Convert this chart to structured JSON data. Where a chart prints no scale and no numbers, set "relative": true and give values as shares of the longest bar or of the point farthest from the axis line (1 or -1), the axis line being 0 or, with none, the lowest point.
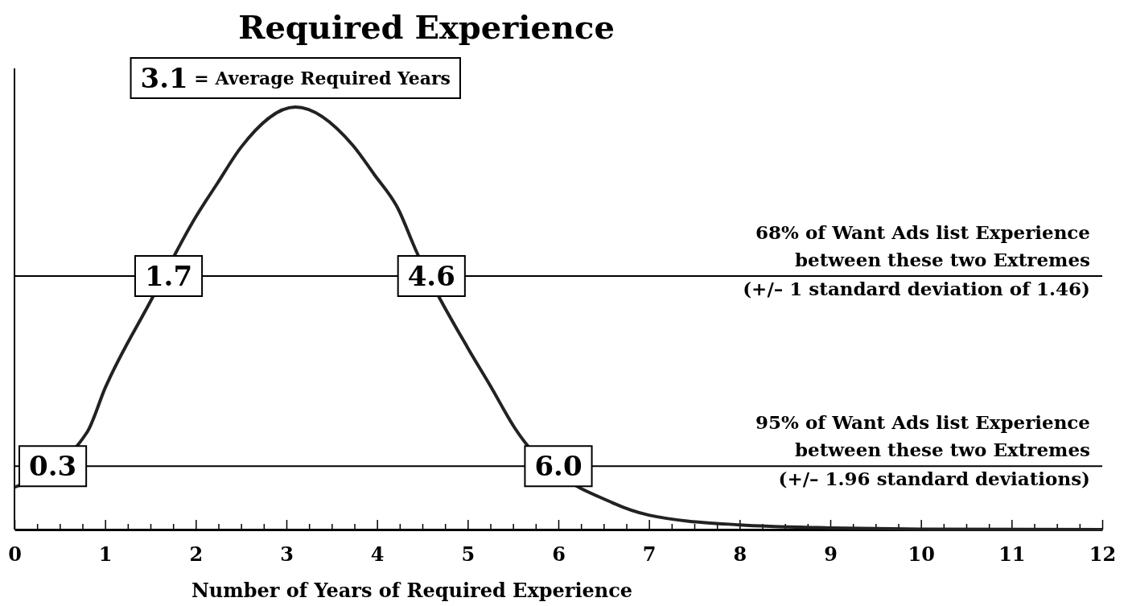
{
  "chart_data": {
    "type": "line",
    "title": "Required Experience",
    "xlabel": "Number of Years of Required Experience",
    "relative": true,
    "x": [
      0,
      0.8,
      1.0,
      1.5,
      2.0,
      2.24,
      2.5,
      3.1,
      3.73,
      3.97,
      4.23,
      4.43,
      5.0,
      5.25,
      5.52,
      6.6,
      7,
      8,
      9,
      10,
      12
    ],
    "series": [
      {
        "color": "#222222",
        "values": [
          0.1,
          0.23,
          0.335,
          0.54,
          0.74,
          0.82,
          0.905,
          1.0,
          0.91,
          0.84,
          0.76,
          0.66,
          0.43,
          0.34,
          0.24,
          0.063,
          0.034,
          0.011,
          0.004,
          0.001,
          0
        ]
      }
    ],
    "xlim": [
      0,
      12
    ],
    "xticks": [
      0,
      {
        "value": 0.25,
        "label": null
      },
      {
        "value": 0.5,
        "label": null
      },
      {
        "value": 0.75,
        "label": null
      },
      1,
      {
        "value": 1.25,
        "label": null
      },
      {
        "value": 1.5,
        "label": null
      },
      {
        "value": 1.75,
        "label": null
      },
      2,
      {
        "value": 2.25,
        "label": null
      },
      {
        "value": 2.5,
        "label": null
      },
      {
        "value": 2.75,
        "label": null
      },
      3,
      {
        "value": 3.25,
        "label": null
      },
      {
        "value": 3.5,
        "label": null
      },
      {
        "value": 3.75,
        "label": null
      },
      4,
      {
        "value": 4.25,
        "label": null
      },
      {
        "value": 4.5,
        "label": null
      },
      {
        "value": 4.75,
        "label": null
      },
      5,
      {
        "value": 5.25,
        "label": null
      },
      {
        "value": 5.5,
        "label": null
      },
      {
        "value": 5.75,
        "label": null
      },
      6,
      {
        "value": 6.25,
        "label": null
      },
      {
        "value": 6.5,
        "label": null
      },
      {
        "value": 6.75,
        "label": null
      },
      7,
      {
        "value": 7.25,
        "label": null
      },
      {
        "value": 7.5,
        "label": null
      },
      {
        "value": 7.75,
        "label": null
      },
      8,
      {
        "value": 8.25,
        "label": null
      },
      {
        "value": 8.5,
        "label": null
      },
      {
        "value": 8.75,
        "label": null
      },
      9,
      {
        "value": 9.25,
        "label": null
      },
      {
        "value": 9.5,
        "label": null
      },
      {
        "value": 9.75,
        "label": null
      },
      10,
      {
        "value": 10.25,
        "label": null
      },
      {
        "value": 10.5,
        "label": null
      },
      {
        "value": 10.75,
        "label": null
      },
      11,
      {
        "value": 11.25,
        "label": null
      },
      {
        "value": 11.5,
        "label": null
      },
      {
        "value": 11.75,
        "label": null
      },
      12
    ],
    "ref_lines": [
      {
        "axis": "y",
        "value": 0.6,
        "color": "#000000",
        "label": "68% of Want Ads list Experience\nbetween these two Extremes\n(+/– 1 standard deviation of  1.46)"
      },
      {
        "axis": "y",
        "value": 0.15,
        "color": "#000000",
        "label": "95% of Want Ads list Experience\nbetween these two Extremes\n(+/– 1.96 standard deviations)"
      }
    ],
    "annotations": [
      {
        "text": "3.1 = Average Required Years",
        "x": 3.1,
        "y": 1.0
      },
      {
        "text": "1.7",
        "x": 1.7,
        "y": 0.6
      },
      {
        "text": "4.6",
        "x": 4.6,
        "y": 0.6
      },
      {
        "text": "0.3",
        "x": 0.3,
        "y": 0.15
      },
      {
        "text": "6.0",
        "x": 6.0,
        "y": 0.15
      }
    ],
    "marker": "none",
    "line_style": "solid"
  }
}
